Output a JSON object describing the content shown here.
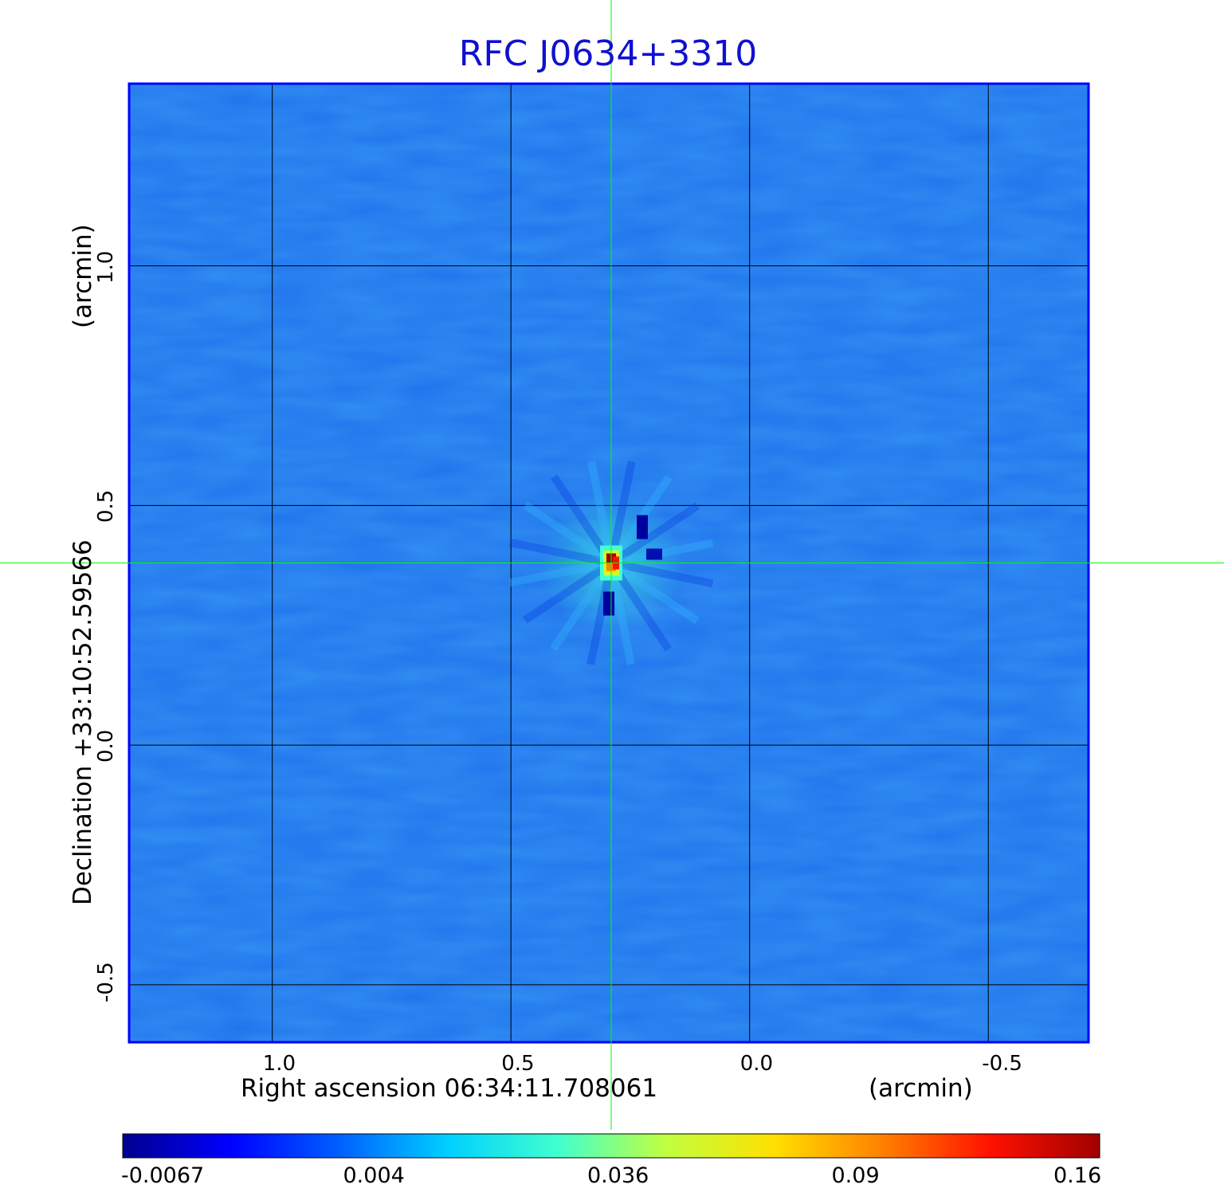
{
  "chart_data": {
    "type": "heatmap",
    "title": "RFC J0634+3310",
    "xlabel": "Right ascension  06:34:11.708061",
    "xunit": "(arcmin)",
    "ylabel": "Declination  +33:10:52.59566",
    "yunit": "(arcmin)",
    "xlim": [
      1.3,
      -0.71
    ],
    "ylim": [
      -0.62,
      1.38
    ],
    "xticks": [
      1.0,
      0.5,
      0.0,
      -0.5
    ],
    "xtick_labels": [
      "1.0",
      "0.5",
      "0.0",
      "-0.5"
    ],
    "yticks": [
      1.0,
      0.5,
      0.0,
      -0.5
    ],
    "ytick_labels": [
      "1.0",
      "0.5",
      "0.0",
      "-0.5"
    ],
    "grid": true,
    "source_position": {
      "ra_offset": 0.29,
      "dec_offset": 0.38
    },
    "peak_value": 0.16,
    "colorbar": {
      "ticks": [
        "-0.0067",
        "0.004",
        "0.036",
        "0.09",
        "0.16"
      ],
      "colors": [
        "#00008f",
        "#0000ff",
        "#0060ff",
        "#00d0ff",
        "#40ffd0",
        "#c0ff40",
        "#ffe000",
        "#ff8000",
        "#ff1000",
        "#a00000"
      ]
    },
    "background_color": "#1f73ec",
    "frame_color": "#0000ff",
    "grid_color": "#000000",
    "crosshair_color": "#00ff00"
  }
}
